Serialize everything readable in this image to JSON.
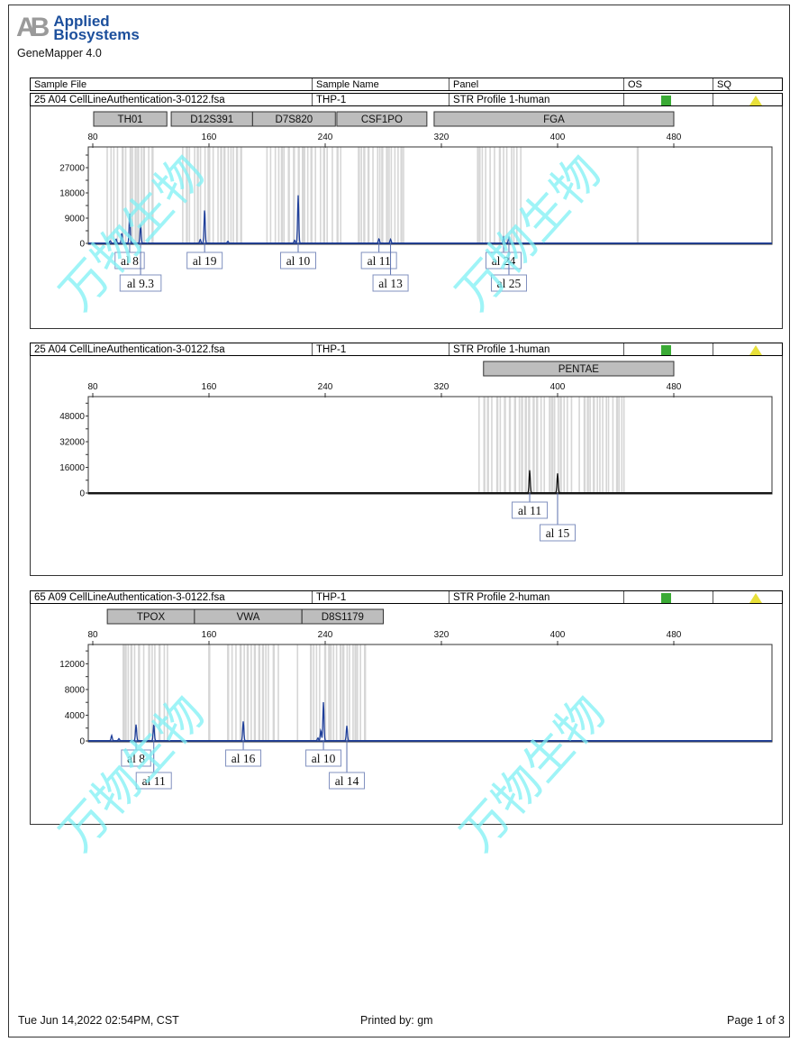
{
  "brand": {
    "logo_mark": "AB",
    "name_line1": "Applied",
    "name_line2": "Biosystems",
    "app_version": "GeneMapper  4.0"
  },
  "table_header": {
    "sample_file": "Sample File",
    "sample_name": "Sample Name",
    "panel": "Panel",
    "os": "OS",
    "sq": "SQ"
  },
  "colors": {
    "os_status": "#3aaa35",
    "sq_status": "#e8e03a",
    "trace_blue": "#1f3f9a",
    "trace_black": "#111111",
    "bin": "#d6d6d6",
    "locus_bar": "#bdbdbd",
    "watermark": "#7ff0f4"
  },
  "watermark": "万物生物",
  "samples": [
    {
      "sample_file": "25  A04  CellLineAuthentication-3-0122.fsa",
      "sample_name": "THP-1",
      "panel": "STR Profile 1-human",
      "os": "pass",
      "sq": "check"
    },
    {
      "sample_file": "25  A04  CellLineAuthentication-3-0122.fsa",
      "sample_name": "THP-1",
      "panel": "STR Profile 1-human",
      "os": "pass",
      "sq": "check"
    },
    {
      "sample_file": "65  A09  CellLineAuthentication-3-0122.fsa",
      "sample_name": "THP-1",
      "panel": "STR Profile 2-human",
      "os": "pass",
      "sq": "check"
    }
  ],
  "chart_data": [
    {
      "type": "line",
      "trace_color": "blue",
      "xlim": [
        77,
        548
      ],
      "ylim": [
        0,
        34400
      ],
      "x_ticks": [
        "80",
        "160",
        "240",
        "320",
        "400",
        "480"
      ],
      "y_ticks": [
        "0",
        "9000",
        "18000",
        "27000"
      ],
      "loci": [
        {
          "name": "TH01",
          "range": [
            80,
            131
          ]
        },
        {
          "name": "D12S391",
          "range": [
            134,
            190
          ]
        },
        {
          "name": "D7S820",
          "range": [
            190,
            247
          ]
        },
        {
          "name": "CSF1PO",
          "range": [
            248,
            310
          ]
        },
        {
          "name": "FGA",
          "range": [
            315,
            480
          ]
        }
      ],
      "peaks": [
        {
          "label": "al 8",
          "x": 105.4,
          "y": 10500
        },
        {
          "label": "al 9.3",
          "x": 112.9,
          "y": 6500
        },
        {
          "label": "al 19",
          "x": 157.0,
          "y": 12000
        },
        {
          "label": "al 10",
          "x": 221.4,
          "y": 17000
        },
        {
          "label": "al 11",
          "x": 277.0,
          "y": 1500
        },
        {
          "label": "al 13",
          "x": 285.0,
          "y": 1300
        },
        {
          "label": "al 24",
          "x": 362.8,
          "y": 2000
        },
        {
          "label": "al 25",
          "x": 366.5,
          "y": 2000
        }
      ],
      "minor_peaks": [
        {
          "x": 92,
          "y": 800
        },
        {
          "x": 96,
          "y": 1400
        },
        {
          "x": 100,
          "y": 3500
        },
        {
          "x": 154,
          "y": 1300
        },
        {
          "x": 219,
          "y": 1000
        },
        {
          "x": 173,
          "y": 600
        }
      ]
    },
    {
      "type": "line",
      "trace_color": "black",
      "xlim": [
        77,
        548
      ],
      "ylim": [
        0,
        60100
      ],
      "x_ticks": [
        "80",
        "160",
        "240",
        "320",
        "400",
        "480"
      ],
      "y_ticks": [
        "0",
        "16000",
        "32000",
        "48000"
      ],
      "loci": [
        {
          "name": "PENTAE",
          "range": [
            349,
            480
          ]
        }
      ],
      "peaks": [
        {
          "label": "al 11",
          "x": 380.8,
          "y": 14000
        },
        {
          "label": "al 15",
          "x": 400.0,
          "y": 12000
        }
      ],
      "minor_peaks": []
    },
    {
      "type": "line",
      "trace_color": "blue",
      "xlim": [
        77,
        548
      ],
      "ylim": [
        0,
        15000
      ],
      "x_ticks": [
        "80",
        "160",
        "240",
        "320",
        "400",
        "480"
      ],
      "y_ticks": [
        "0",
        "4000",
        "8000",
        "12000"
      ],
      "loci": [
        {
          "name": "TPOX",
          "range": [
            90,
            150
          ]
        },
        {
          "name": "VWA",
          "range": [
            150,
            224
          ]
        },
        {
          "name": "D8S1179",
          "range": [
            224,
            280
          ]
        }
      ],
      "peaks": [
        {
          "label": "al 8",
          "x": 109.8,
          "y": 2500
        },
        {
          "label": "al 11",
          "x": 122.0,
          "y": 2500
        },
        {
          "label": "al 16",
          "x": 183.6,
          "y": 3000
        },
        {
          "label": "al 10",
          "x": 238.8,
          "y": 6000
        },
        {
          "label": "al 14",
          "x": 254.9,
          "y": 2300
        }
      ],
      "minor_peaks": [
        {
          "x": 93,
          "y": 800
        },
        {
          "x": 98,
          "y": 300
        },
        {
          "x": 237,
          "y": 1600
        },
        {
          "x": 235,
          "y": 400
        }
      ]
    }
  ],
  "footer": {
    "date": "Tue Jun 14,2022 02:54PM, CST",
    "printed_by": "Printed by: gm",
    "page": "Page 1 of 3"
  }
}
